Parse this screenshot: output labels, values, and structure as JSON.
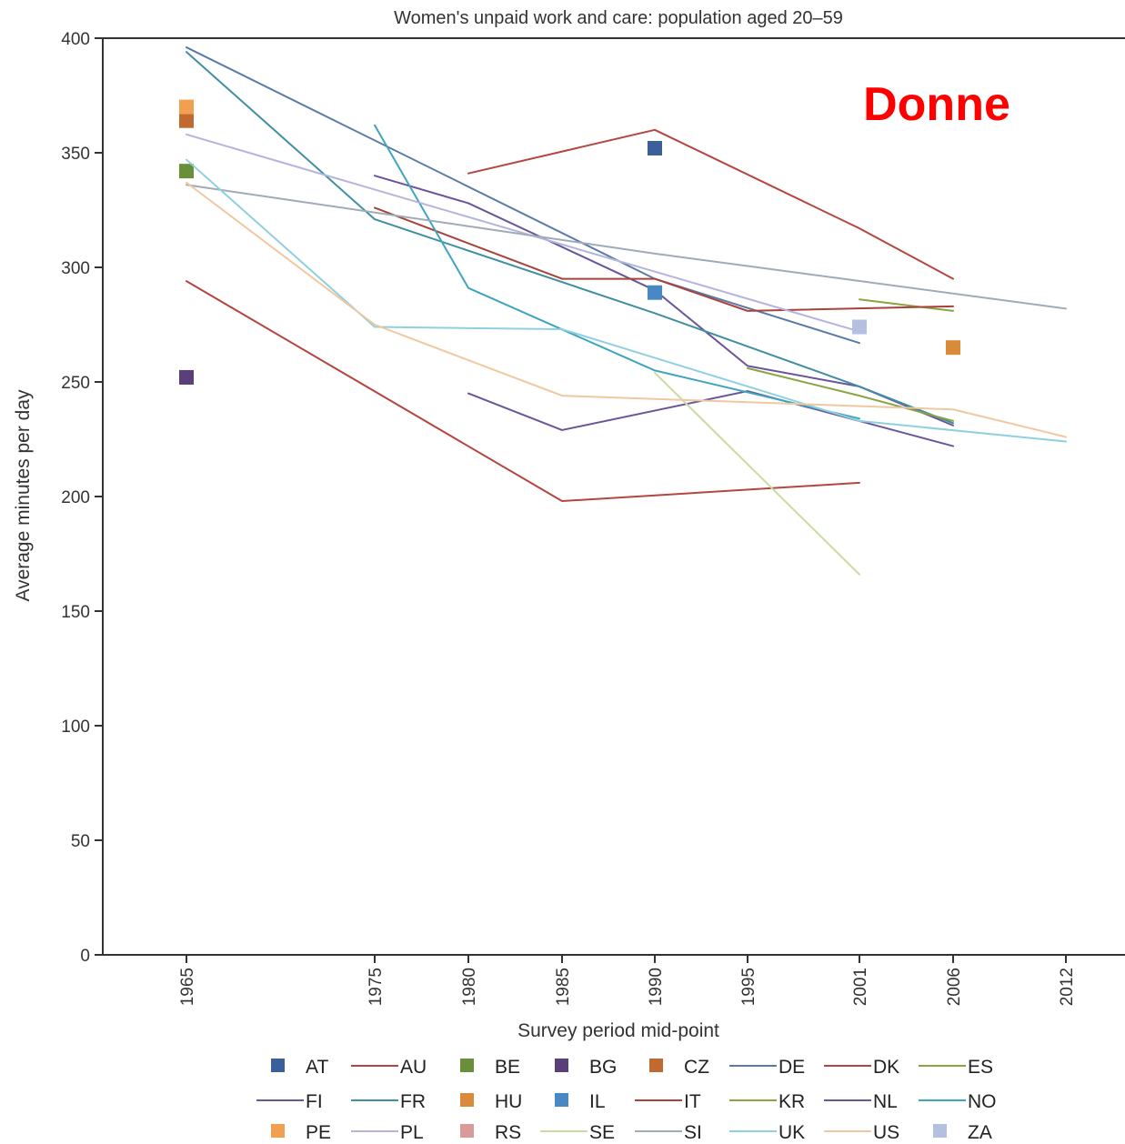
{
  "chart_data": {
    "type": "line",
    "title": "Women's unpaid work and care: population aged 20–59",
    "xlabel": "Survey period mid-point",
    "ylabel": "Average minutes per day",
    "annotation": "Donne",
    "x_ticks": [
      1965,
      1975,
      1980,
      1985,
      1990,
      1995,
      2001,
      2006,
      2012
    ],
    "y_ticks": [
      0,
      50,
      100,
      150,
      200,
      250,
      300,
      350,
      400
    ],
    "ylim": [
      0,
      400
    ],
    "grid": false,
    "legend_position": "bottom",
    "series": [
      {
        "name": "AT",
        "marker": "square",
        "color": "#3a5f9a",
        "points": [
          [
            1990,
            352
          ]
        ]
      },
      {
        "name": "AU",
        "marker": "line",
        "color": "#b5463f",
        "points": [
          [
            1965,
            294
          ],
          [
            1985,
            198
          ],
          [
            2001,
            206
          ]
        ]
      },
      {
        "name": "BE",
        "marker": "square",
        "color": "#6a8f3a",
        "points": [
          [
            1965,
            342
          ]
        ]
      },
      {
        "name": "BG",
        "marker": "square",
        "color": "#5b3f7a",
        "points": [
          [
            1965,
            252
          ]
        ]
      },
      {
        "name": "CZ",
        "marker": "square",
        "color": "#c06a30",
        "points": [
          [
            1965,
            364
          ]
        ]
      },
      {
        "name": "DE",
        "marker": "line",
        "color": "#5a7aa8",
        "points": [
          [
            1965,
            396
          ],
          [
            1990,
            295
          ],
          [
            2001,
            267
          ]
        ]
      },
      {
        "name": "DK",
        "marker": "line",
        "color": "#b5463f",
        "points": [
          [
            1980,
            341
          ],
          [
            1990,
            360
          ],
          [
            2001,
            317
          ],
          [
            2006,
            295
          ]
        ]
      },
      {
        "name": "ES",
        "marker": "line",
        "color": "#8aa43f",
        "points": [
          [
            2001,
            286
          ],
          [
            2006,
            281
          ]
        ]
      },
      {
        "name": "FI",
        "marker": "line",
        "color": "#6a559a",
        "points": [
          [
            1975,
            340
          ],
          [
            1980,
            328
          ],
          [
            1990,
            290
          ],
          [
            1995,
            257
          ],
          [
            2001,
            248
          ],
          [
            2006,
            231
          ]
        ]
      },
      {
        "name": "FR",
        "marker": "line",
        "color": "#3f8fa0",
        "points": [
          [
            1965,
            394
          ],
          [
            1975,
            321
          ],
          [
            1990,
            280
          ],
          [
            2001,
            248
          ],
          [
            2006,
            232
          ]
        ]
      },
      {
        "name": "HU",
        "marker": "square",
        "color": "#d98a3a",
        "points": [
          [
            2006,
            265
          ]
        ]
      },
      {
        "name": "IL",
        "marker": "square",
        "color": "#4a88c4",
        "points": [
          [
            1990,
            289
          ]
        ]
      },
      {
        "name": "IT",
        "marker": "line",
        "color": "#a8423a",
        "points": [
          [
            1975,
            326
          ],
          [
            1985,
            295
          ],
          [
            1990,
            295
          ],
          [
            1995,
            281
          ],
          [
            2006,
            283
          ]
        ]
      },
      {
        "name": "KR",
        "marker": "line",
        "color": "#8aa43f",
        "points": [
          [
            1995,
            256
          ],
          [
            2001,
            244
          ],
          [
            2006,
            233
          ]
        ]
      },
      {
        "name": "NL",
        "marker": "line",
        "color": "#6a559a",
        "points": [
          [
            1980,
            245
          ],
          [
            1985,
            229
          ],
          [
            1995,
            246
          ],
          [
            2006,
            222
          ]
        ]
      },
      {
        "name": "NO",
        "marker": "line",
        "color": "#3fa4c0",
        "points": [
          [
            1975,
            362
          ],
          [
            1980,
            291
          ],
          [
            1990,
            255
          ],
          [
            2001,
            234
          ]
        ]
      },
      {
        "name": "PE",
        "marker": "square",
        "color": "#f0a050",
        "points": [
          [
            1965,
            370
          ]
        ]
      },
      {
        "name": "PL",
        "marker": "line",
        "color": "#b4b4dc",
        "points": [
          [
            1965,
            358
          ],
          [
            2001,
            272
          ]
        ]
      },
      {
        "name": "RS",
        "marker": "square",
        "color": "#d99a9a",
        "points": []
      },
      {
        "name": "SE",
        "marker": "line",
        "color": "#c8dca0",
        "points": [
          [
            1990,
            254
          ],
          [
            2001,
            166
          ]
        ]
      },
      {
        "name": "SI",
        "marker": "line",
        "color": "#a0aab8",
        "points": [
          [
            1965,
            336
          ],
          [
            1990,
            306
          ],
          [
            2012,
            282
          ]
        ]
      },
      {
        "name": "UK",
        "marker": "line",
        "color": "#8fd0e0",
        "points": [
          [
            1965,
            347
          ],
          [
            1975,
            274
          ],
          [
            1985,
            273
          ],
          [
            2001,
            233
          ],
          [
            2012,
            224
          ]
        ]
      },
      {
        "name": "US",
        "marker": "line",
        "color": "#f0c8a0",
        "points": [
          [
            1965,
            337
          ],
          [
            1975,
            275
          ],
          [
            1985,
            244
          ],
          [
            2006,
            238
          ],
          [
            2012,
            226
          ]
        ]
      },
      {
        "name": "ZA",
        "marker": "square",
        "color": "#b4c0e0",
        "points": [
          [
            2001,
            274
          ]
        ]
      }
    ]
  }
}
